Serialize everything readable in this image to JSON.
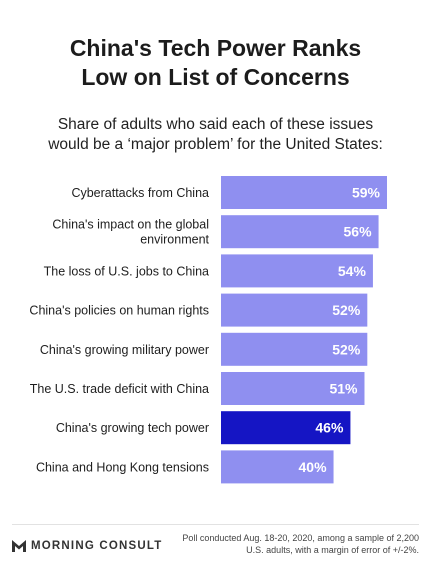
{
  "header": {
    "title_line1": "China's Tech Power Ranks",
    "title_line2": "Low on List of Concerns",
    "subtitle_line1": "Share of adults who said each of these issues",
    "subtitle_line2": "would be a ‘major problem’ for the United States:"
  },
  "chart_data": {
    "type": "bar",
    "orientation": "horizontal",
    "title": "China's Tech Power Ranks Low on List of Concerns",
    "subtitle": "Share of adults who said each of these issues would be a ‘major problem’ for the United States:",
    "categories": [
      [
        "Cyberattacks from China"
      ],
      [
        "China's impact on the global",
        "environment"
      ],
      [
        "The loss of U.S. jobs to China"
      ],
      [
        "China's policies on human rights"
      ],
      [
        "China's growing military power"
      ],
      [
        "The U.S. trade deficit with China"
      ],
      [
        "China's growing tech power"
      ],
      [
        "China and Hong Kong tensions"
      ]
    ],
    "values": [
      59,
      56,
      54,
      52,
      52,
      51,
      46,
      40
    ],
    "value_labels": [
      "59%",
      "56%",
      "54%",
      "52%",
      "52%",
      "51%",
      "46%",
      "40%"
    ],
    "unit": "%",
    "highlight_index": 6,
    "colors": {
      "bar": "#8f8ff0",
      "highlight": "#1515c4",
      "value_text": "#ffffff",
      "category_text": "#1e1e1e"
    },
    "xlabel": "",
    "ylabel": "",
    "grid": false,
    "legend": "none"
  },
  "footer": {
    "logo_icon": "morning-consult-m-logo",
    "logo_text": "MORNING CONSULT",
    "note_line1": "Poll conducted Aug. 18-20, 2020, among a sample of 2,200",
    "note_line2": "U.S. adults, with a margin of error of +/-2%."
  }
}
